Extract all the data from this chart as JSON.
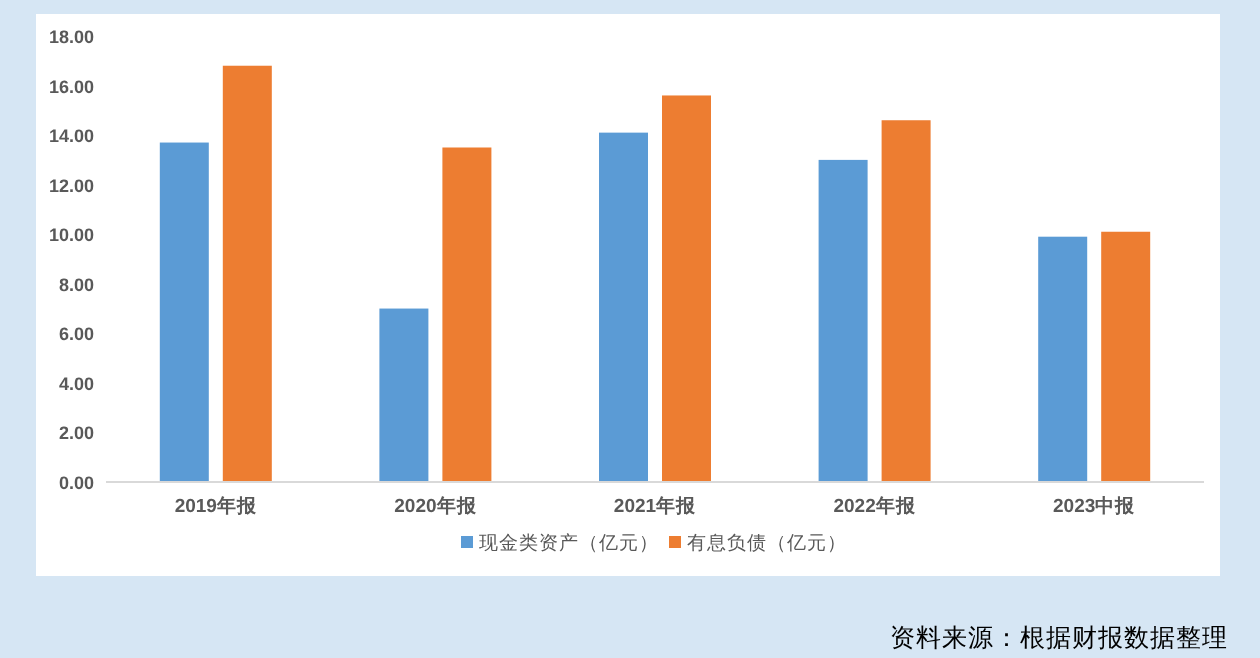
{
  "chart_data": {
    "type": "bar",
    "categories": [
      "2019年报",
      "2020年报",
      "2021年报",
      "2022年报",
      "2023中报"
    ],
    "series": [
      {
        "name": "现金类资产（亿元）",
        "color": "#5b9bd5",
        "values": [
          13.7,
          7.0,
          14.1,
          13.0,
          9.9
        ]
      },
      {
        "name": "有息负债（亿元）",
        "color": "#ed7d31",
        "values": [
          16.8,
          13.5,
          15.6,
          14.6,
          10.1
        ]
      }
    ],
    "ylim": [
      0,
      18
    ],
    "yticks": [
      {
        "value": 0,
        "label": "0.00"
      },
      {
        "value": 2,
        "label": "2.00"
      },
      {
        "value": 4,
        "label": "4.00"
      },
      {
        "value": 6,
        "label": "6.00"
      },
      {
        "value": 8,
        "label": "8.00"
      },
      {
        "value": 10,
        "label": "10.00"
      },
      {
        "value": 12,
        "label": "12.00"
      },
      {
        "value": 14,
        "label": "14.00"
      },
      {
        "value": 16,
        "label": "16.00"
      },
      {
        "value": 18,
        "label": "18.00"
      }
    ],
    "grid": false,
    "legend": "bottom",
    "annotations": [
      "资料来源：根据财报数据整理"
    ]
  }
}
